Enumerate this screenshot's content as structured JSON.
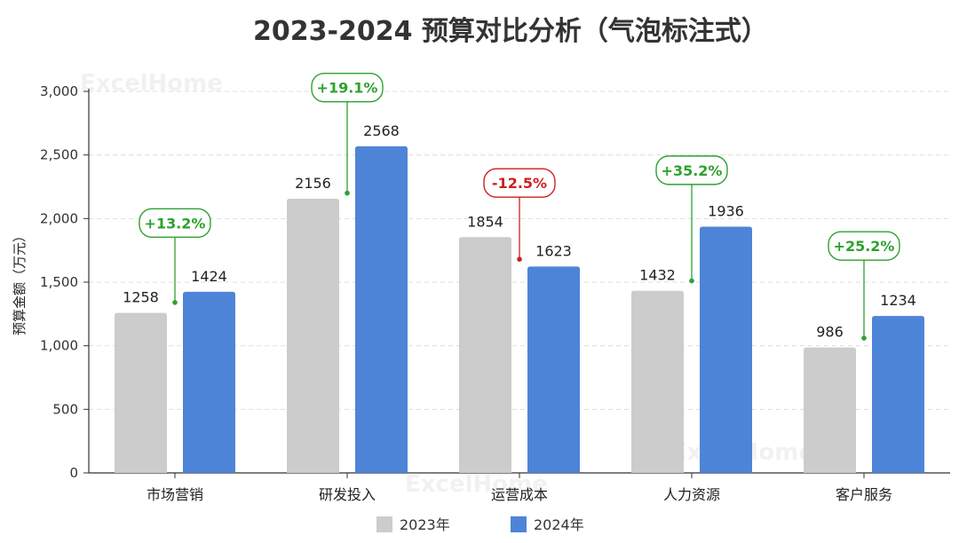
{
  "watermark": "ExcelHome",
  "chart_data": {
    "type": "bar",
    "title": "2023-2024 预算对比分析（气泡标注式）",
    "ylabel": "预算金额（万元）",
    "xlabel": "",
    "ylim": [
      0,
      3000
    ],
    "yticks": [
      0,
      500,
      1000,
      1500,
      2000,
      2500,
      3000
    ],
    "ytick_labels": [
      "0",
      "500",
      "1,000",
      "1,500",
      "2,000",
      "2,500",
      "3,000"
    ],
    "categories": [
      "市场营销",
      "研发投入",
      "运营成本",
      "人力资源",
      "客户服务"
    ],
    "series": [
      {
        "name": "2023年",
        "color": "#cccccc",
        "values": [
          1258,
          2156,
          1854,
          1432,
          986
        ]
      },
      {
        "name": "2024年",
        "color": "#4e84d8",
        "values": [
          1424,
          2568,
          1623,
          1936,
          1234
        ]
      }
    ],
    "annotations": [
      {
        "label": "+13.2%",
        "color": "#2ea12e",
        "anchor_value": 1340,
        "bubble_value": 1965
      },
      {
        "label": "+19.1%",
        "color": "#2ea12e",
        "anchor_value": 2200,
        "bubble_value": 3030
      },
      {
        "label": "-12.5%",
        "color": "#cc1f1f",
        "anchor_value": 1680,
        "bubble_value": 2280
      },
      {
        "label": "+35.2%",
        "color": "#2ea12e",
        "anchor_value": 1510,
        "bubble_value": 2380
      },
      {
        "label": "+25.2%",
        "color": "#2ea12e",
        "anchor_value": 1060,
        "bubble_value": 1785
      }
    ],
    "grid": true,
    "legend": "bottom"
  }
}
